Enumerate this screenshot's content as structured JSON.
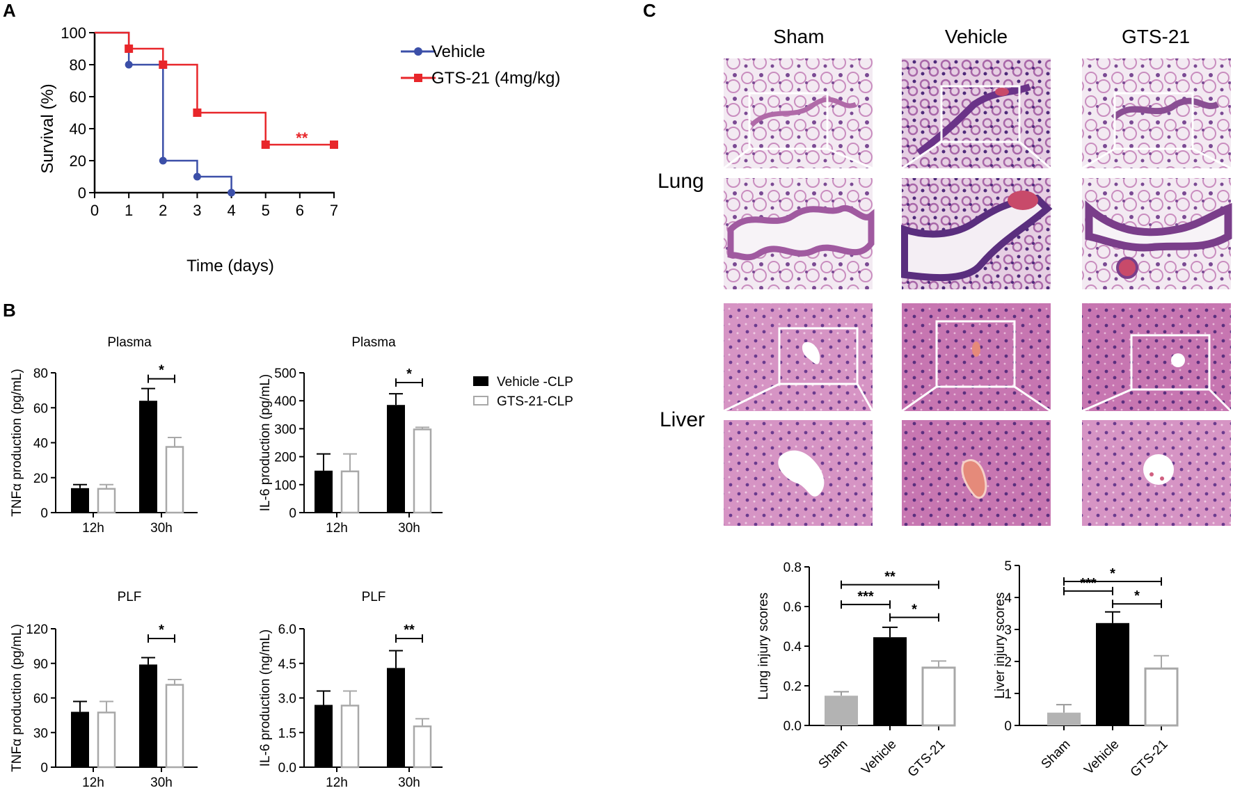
{
  "panel_labels": {
    "a": "A",
    "b": "B",
    "c": "C"
  },
  "colors": {
    "vehicle": "#3b4fa8",
    "gts": "#e8262a",
    "black": "#000000",
    "gray": "#a8a8a8",
    "tissue_pink": "#d9a7cf",
    "tissue_purple": "#8a4e93",
    "liver": "#b8619b"
  },
  "chart_data": [
    {
      "id": "survival",
      "type": "line",
      "step": true,
      "xlabel": "Time (days)",
      "ylabel": "Survival  (%)",
      "xlim": [
        0,
        7
      ],
      "ylim": [
        0,
        100
      ],
      "xticks": [
        "0",
        "1",
        "2",
        "3",
        "4",
        "5",
        "6",
        "7"
      ],
      "yticks": [
        "0",
        "20",
        "40",
        "60",
        "80",
        "100"
      ],
      "legend_position": "top-right",
      "series": [
        {
          "name": "Vehicle",
          "color": "#3b4fa8",
          "marker": "circle",
          "points": [
            [
              0,
              100
            ],
            [
              1,
              100
            ],
            [
              1,
              80
            ],
            [
              2,
              80
            ],
            [
              2,
              20
            ],
            [
              3,
              20
            ],
            [
              3,
              10
            ],
            [
              4,
              10
            ],
            [
              4,
              0
            ]
          ],
          "markers": [
            [
              1,
              80
            ],
            [
              2,
              20
            ],
            [
              3,
              10
            ],
            [
              4,
              0
            ]
          ]
        },
        {
          "name": "GTS-21 (4mg/kg)",
          "color": "#e8262a",
          "marker": "square",
          "points": [
            [
              0,
              100
            ],
            [
              1,
              100
            ],
            [
              1,
              90
            ],
            [
              2,
              90
            ],
            [
              2,
              80
            ],
            [
              3,
              80
            ],
            [
              3,
              50
            ],
            [
              5,
              50
            ],
            [
              5,
              30
            ],
            [
              7,
              30
            ]
          ],
          "markers": [
            [
              1,
              90
            ],
            [
              2,
              80
            ],
            [
              3,
              50
            ],
            [
              5,
              30
            ],
            [
              7,
              30
            ]
          ]
        }
      ],
      "annotation": {
        "text": "**",
        "x": 6,
        "y": 30
      }
    },
    {
      "id": "tnf-plasma",
      "type": "bar",
      "title": "Plasma",
      "ylabel": "TNFα production (pg/mL)",
      "categories": [
        "12h",
        "30h"
      ],
      "yticks": [
        "0",
        "20",
        "40",
        "60",
        "80"
      ],
      "ylim": [
        0,
        80
      ],
      "series": [
        {
          "name": "Vehicle -CLP",
          "values": [
            14,
            64
          ],
          "errors": [
            2,
            7
          ]
        },
        {
          "name": "GTS-21-CLP",
          "values": [
            14,
            38
          ],
          "errors": [
            2,
            5
          ]
        }
      ],
      "significance": [
        {
          "text": "*",
          "group": 1
        }
      ]
    },
    {
      "id": "il6-plasma",
      "type": "bar",
      "title": "Plasma",
      "ylabel": "IL-6 production (pg/mL)",
      "categories": [
        "12h",
        "30h"
      ],
      "yticks": [
        "0",
        "100",
        "200",
        "300",
        "400",
        "500"
      ],
      "ylim": [
        0,
        500
      ],
      "series": [
        {
          "name": "Vehicle -CLP",
          "values": [
            150,
            385
          ],
          "errors": [
            60,
            40
          ]
        },
        {
          "name": "GTS-21-CLP",
          "values": [
            150,
            300
          ],
          "errors": [
            60,
            5
          ]
        }
      ],
      "significance": [
        {
          "text": "*",
          "group": 1
        }
      ]
    },
    {
      "id": "tnf-plf",
      "type": "bar",
      "title": "PLF",
      "ylabel": "TNFα production (pg/mL)",
      "categories": [
        "12h",
        "30h"
      ],
      "yticks": [
        "0",
        "30",
        "60",
        "90",
        "120"
      ],
      "ylim": [
        0,
        120
      ],
      "series": [
        {
          "name": "Vehicle -CLP",
          "values": [
            48,
            89
          ],
          "errors": [
            9,
            6
          ]
        },
        {
          "name": "GTS-21-CLP",
          "values": [
            48,
            72
          ],
          "errors": [
            9,
            4
          ]
        }
      ],
      "significance": [
        {
          "text": "*",
          "group": 1
        }
      ]
    },
    {
      "id": "il6-plf",
      "type": "bar",
      "title": "PLF",
      "ylabel": "IL-6 production (ng/mL)",
      "categories": [
        "12h",
        "30h"
      ],
      "yticks": [
        "0.0",
        "1.5",
        "3.0",
        "4.5",
        "6.0"
      ],
      "ylim": [
        0,
        6
      ],
      "series": [
        {
          "name": "Vehicle -CLP",
          "values": [
            2.7,
            4.3
          ],
          "errors": [
            0.6,
            0.75
          ]
        },
        {
          "name": "GTS-21-CLP",
          "values": [
            2.7,
            1.8
          ],
          "errors": [
            0.6,
            0.3
          ]
        }
      ],
      "significance": [
        {
          "text": "**",
          "group": 1
        }
      ]
    },
    {
      "id": "lung-scores",
      "type": "bar",
      "ylabel": "Lung injury scores",
      "categories": [
        "Sham",
        "Vehicle",
        "GTS-21"
      ],
      "values": [
        0.15,
        0.445,
        0.295
      ],
      "errors": [
        0.02,
        0.05,
        0.03
      ],
      "yticks": [
        "0.0",
        "0.2",
        "0.4",
        "0.6",
        "0.8"
      ],
      "ylim": [
        0,
        0.8
      ],
      "significance": [
        {
          "text": "**",
          "from": 0,
          "to": 2,
          "level": 0.71
        },
        {
          "text": "***",
          "from": 0,
          "to": 1,
          "level": 0.61
        },
        {
          "text": "*",
          "from": 1,
          "to": 2,
          "level": 0.545
        }
      ]
    },
    {
      "id": "liver-scores",
      "type": "bar",
      "ylabel": "Liver injury scores",
      "categories": [
        "Sham",
        "Vehicle",
        "GTS-21"
      ],
      "values": [
        0.4,
        3.2,
        1.8
      ],
      "errors": [
        0.25,
        0.35,
        0.38
      ],
      "yticks": [
        "0",
        "1",
        "2",
        "3",
        "4",
        "5"
      ],
      "ylim": [
        0,
        5
      ],
      "significance": [
        {
          "text": "*",
          "from": 0,
          "to": 2,
          "level": 4.5
        },
        {
          "text": "***",
          "from": 0,
          "to": 1,
          "level": 4.2
        },
        {
          "text": "*",
          "from": 1,
          "to": 2,
          "level": 3.8
        }
      ]
    }
  ],
  "legend_b": [
    {
      "name": "Vehicle -CLP",
      "style": "filled"
    },
    {
      "name": "GTS-21-CLP",
      "style": "outline"
    }
  ],
  "histology": {
    "columns": [
      "Sham",
      "Vehicle",
      "GTS-21"
    ],
    "rows": [
      "Lung",
      "Liver"
    ]
  }
}
